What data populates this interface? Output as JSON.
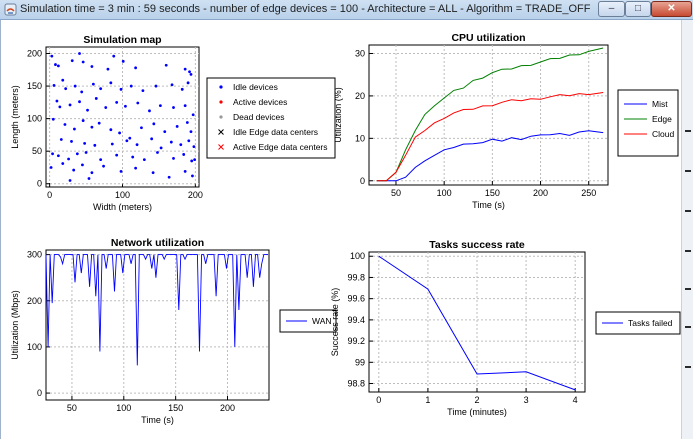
{
  "window": {
    "title": "Simulation time = 3 min : 59 seconds  -  number of edge devices = 100 -  Architecture = ALL -  Algorithm = TRADE_OFF",
    "minimize_label": "–",
    "maximize_label": "□",
    "close_label": "✕"
  },
  "colors": {
    "idle": "#0000ff",
    "active": "#ff0000",
    "dead": "#999999",
    "idle_dc": "#000000",
    "active_dc": "#ff0000",
    "mist": "#0000ff",
    "edge": "#008000",
    "cloud": "#ff0000",
    "wan": "#0000ff",
    "tasks": "#0000ff"
  },
  "chart_data": [
    {
      "id": "map",
      "type": "scatter",
      "title": "Simulation map",
      "xlabel": "Width (meters)",
      "ylabel": "Length (meters)",
      "xlim": [
        -5,
        205
      ],
      "ylim": [
        -5,
        210
      ],
      "xticks": [
        "0",
        "100",
        "200"
      ],
      "xtick_values": [
        0,
        100,
        200
      ],
      "yticks": [
        "0",
        "50",
        "100",
        "150",
        "200"
      ],
      "ytick_values": [
        0,
        50,
        100,
        150,
        200
      ],
      "legend": [
        "Idle devices",
        "Active devices",
        "Dead devices",
        "Idle Edge data centers",
        "Active Edge data centers"
      ],
      "points": [
        [
          3,
          196
        ],
        [
          8,
          183
        ],
        [
          12,
          181
        ],
        [
          31,
          189
        ],
        [
          41,
          200
        ],
        [
          46,
          187
        ],
        [
          58,
          180
        ],
        [
          80,
          176
        ],
        [
          88,
          196
        ],
        [
          101,
          188
        ],
        [
          118,
          178
        ],
        [
          160,
          182
        ],
        [
          186,
          176
        ],
        [
          192,
          172
        ],
        [
          194,
          168
        ],
        [
          6,
          151
        ],
        [
          18,
          159
        ],
        [
          22,
          146
        ],
        [
          35,
          150
        ],
        [
          44,
          141
        ],
        [
          60,
          153
        ],
        [
          70,
          146
        ],
        [
          84,
          155
        ],
        [
          98,
          145
        ],
        [
          112,
          150
        ],
        [
          128,
          143
        ],
        [
          146,
          150
        ],
        [
          168,
          152
        ],
        [
          182,
          145
        ],
        [
          190,
          155
        ],
        [
          10,
          127
        ],
        [
          14,
          118
        ],
        [
          28,
          121
        ],
        [
          41,
          126
        ],
        [
          52,
          113
        ],
        [
          64,
          131
        ],
        [
          77,
          117
        ],
        [
          92,
          125
        ],
        [
          104,
          119
        ],
        [
          121,
          124
        ],
        [
          137,
          112
        ],
        [
          152,
          120
        ],
        [
          170,
          117
        ],
        [
          186,
          120
        ],
        [
          197,
          106
        ],
        [
          5,
          99
        ],
        [
          21,
          91
        ],
        [
          34,
          84
        ],
        [
          46,
          97
        ],
        [
          58,
          87
        ],
        [
          68,
          93
        ],
        [
          84,
          83
        ],
        [
          96,
          78
        ],
        [
          110,
          70
        ],
        [
          126,
          86
        ],
        [
          143,
          92
        ],
        [
          158,
          80
        ],
        [
          175,
          88
        ],
        [
          189,
          94
        ],
        [
          194,
          80
        ],
        [
          16,
          68
        ],
        [
          30,
          65
        ],
        [
          48,
          62
        ],
        [
          62,
          59
        ],
        [
          86,
          61
        ],
        [
          106,
          66
        ],
        [
          120,
          60
        ],
        [
          140,
          69
        ],
        [
          153,
          55
        ],
        [
          167,
          64
        ],
        [
          180,
          60
        ],
        [
          191,
          66
        ],
        [
          198,
          57
        ],
        [
          4,
          46
        ],
        [
          12,
          43
        ],
        [
          26,
          38
        ],
        [
          38,
          46
        ],
        [
          50,
          48
        ],
        [
          70,
          37
        ],
        [
          92,
          44
        ],
        [
          114,
          41
        ],
        [
          130,
          37
        ],
        [
          148,
          48
        ],
        [
          170,
          39
        ],
        [
          184,
          45
        ],
        [
          199,
          37
        ],
        [
          195,
          35
        ],
        [
          2,
          25
        ],
        [
          18,
          31
        ],
        [
          33,
          21
        ],
        [
          45,
          29
        ],
        [
          58,
          17
        ],
        [
          74,
          27
        ],
        [
          98,
          19
        ],
        [
          118,
          24
        ],
        [
          142,
          17
        ],
        [
          164,
          10
        ],
        [
          186,
          19
        ],
        [
          196,
          12
        ],
        [
          54,
          8
        ],
        [
          28,
          5
        ]
      ]
    },
    {
      "id": "cpu",
      "type": "line",
      "title": "CPU utilization",
      "xlabel": "Time (s)",
      "ylabel": "Utilization (%)",
      "xlim": [
        22,
        270
      ],
      "ylim": [
        -1,
        32
      ],
      "xticks": [
        "50",
        "100",
        "150",
        "200",
        "250"
      ],
      "xtick_values": [
        50,
        100,
        150,
        200,
        250
      ],
      "yticks": [
        "0",
        "10",
        "20",
        "30"
      ],
      "ytick_values": [
        0,
        10,
        20,
        30
      ],
      "legend": [
        "Mist",
        "Edge",
        "Cloud"
      ],
      "series": [
        {
          "name": "Mist",
          "x": [
            30,
            40,
            50,
            60,
            70,
            80,
            90,
            100,
            110,
            120,
            130,
            140,
            150,
            160,
            170,
            180,
            190,
            200,
            210,
            220,
            230,
            240,
            250,
            265
          ],
          "y": [
            0,
            0,
            0,
            1,
            3,
            5,
            6,
            7,
            8,
            8.5,
            9,
            9,
            9.5,
            9.5,
            10,
            10,
            10.5,
            10.5,
            11,
            11,
            11,
            11.5,
            11.5,
            11.5
          ]
        },
        {
          "name": "Edge",
          "x": [
            30,
            40,
            50,
            60,
            70,
            80,
            90,
            100,
            110,
            120,
            130,
            140,
            150,
            160,
            170,
            180,
            190,
            200,
            210,
            220,
            230,
            240,
            250,
            265
          ],
          "y": [
            0,
            0,
            2,
            7,
            12,
            15.5,
            18,
            19.5,
            21,
            22,
            23.5,
            24.5,
            25.5,
            26,
            26.5,
            27,
            27.5,
            28,
            28.5,
            29,
            29.5,
            30,
            30.5,
            31
          ]
        },
        {
          "name": "Cloud",
          "x": [
            30,
            40,
            50,
            60,
            70,
            80,
            90,
            100,
            110,
            120,
            130,
            140,
            150,
            160,
            170,
            180,
            190,
            200,
            210,
            220,
            230,
            240,
            250,
            265
          ],
          "y": [
            0,
            0,
            2,
            6,
            10,
            12,
            13.5,
            15,
            16,
            16.5,
            17,
            17.5,
            18,
            18.5,
            18.8,
            19,
            19.2,
            19.5,
            19.8,
            20,
            20.2,
            20.4,
            20.6,
            20.8
          ]
        }
      ]
    },
    {
      "id": "network",
      "type": "line",
      "title": "Network utilization",
      "xlabel": "Time (s)",
      "ylabel": "Utilization (Mbps)",
      "xlim": [
        25,
        240
      ],
      "ylim": [
        -15,
        310
      ],
      "xticks": [
        "50",
        "100",
        "150",
        "200"
      ],
      "xtick_values": [
        50,
        100,
        150,
        200
      ],
      "yticks": [
        "0",
        "100",
        "200",
        "300"
      ],
      "ytick_values": [
        0,
        100,
        200,
        300
      ],
      "legend": [
        "WAN"
      ],
      "series": [
        {
          "name": "WAN",
          "x": [
            25,
            27,
            29,
            31,
            33,
            35,
            37,
            39,
            41,
            43,
            45,
            47,
            49,
            51,
            53,
            55,
            57,
            59,
            61,
            63,
            65,
            67,
            69,
            71,
            73,
            75,
            77,
            79,
            81,
            83,
            85,
            87,
            89,
            91,
            93,
            95,
            97,
            99,
            101,
            103,
            105,
            107,
            109,
            111,
            113,
            115,
            117,
            119,
            121,
            123,
            125,
            127,
            129,
            131,
            133,
            135,
            137,
            139,
            141,
            143,
            145,
            147,
            149,
            151,
            153,
            155,
            157,
            159,
            161,
            163,
            165,
            167,
            169,
            171,
            173,
            175,
            177,
            179,
            181,
            183,
            185,
            187,
            189,
            191,
            193,
            195,
            197,
            199,
            201,
            203,
            205,
            207,
            209,
            211,
            213,
            215,
            217,
            219,
            221,
            223,
            225,
            227,
            229,
            231,
            233,
            235,
            237,
            239
          ],
          "y": [
            300,
            100,
            300,
            195,
            300,
            300,
            300,
            295,
            280,
            300,
            300,
            300,
            300,
            300,
            240,
            300,
            300,
            260,
            300,
            300,
            300,
            230,
            300,
            300,
            210,
            300,
            90,
            300,
            300,
            270,
            300,
            300,
            300,
            220,
            300,
            300,
            300,
            260,
            300,
            300,
            300,
            280,
            300,
            300,
            60,
            300,
            300,
            300,
            290,
            300,
            300,
            270,
            300,
            250,
            300,
            300,
            300,
            290,
            300,
            300,
            300,
            300,
            300,
            300,
            180,
            300,
            300,
            290,
            300,
            300,
            300,
            300,
            300,
            300,
            90,
            300,
            300,
            280,
            300,
            300,
            300,
            300,
            210,
            300,
            300,
            300,
            300,
            270,
            300,
            300,
            300,
            100,
            300,
            180,
            300,
            300,
            300,
            250,
            300,
            300,
            230,
            300,
            300,
            250,
            280,
            300,
            300,
            300
          ]
        }
      ]
    },
    {
      "id": "tasks",
      "type": "line",
      "title": "Tasks success rate",
      "xlabel": "Time (minutes)",
      "ylabel": "Success rate (%)",
      "xlim": [
        -0.2,
        4.2
      ],
      "ylim": [
        98.72,
        100.04
      ],
      "xticks": [
        "0",
        "1",
        "2",
        "3",
        "4"
      ],
      "xtick_values": [
        0,
        1,
        2,
        3,
        4
      ],
      "yticks": [
        "100",
        "99.8",
        "99.6",
        "99.4",
        "99.2",
        "99",
        "98.8"
      ],
      "ytick_values": [
        100,
        99.8,
        99.6,
        99.4,
        99.2,
        99,
        98.8
      ],
      "legend": [
        "Tasks failed"
      ],
      "series": [
        {
          "name": "Tasks failed",
          "x": [
            0,
            1,
            2,
            3,
            4
          ],
          "y": [
            100,
            99.69,
            98.89,
            98.91,
            98.74
          ]
        }
      ]
    }
  ]
}
